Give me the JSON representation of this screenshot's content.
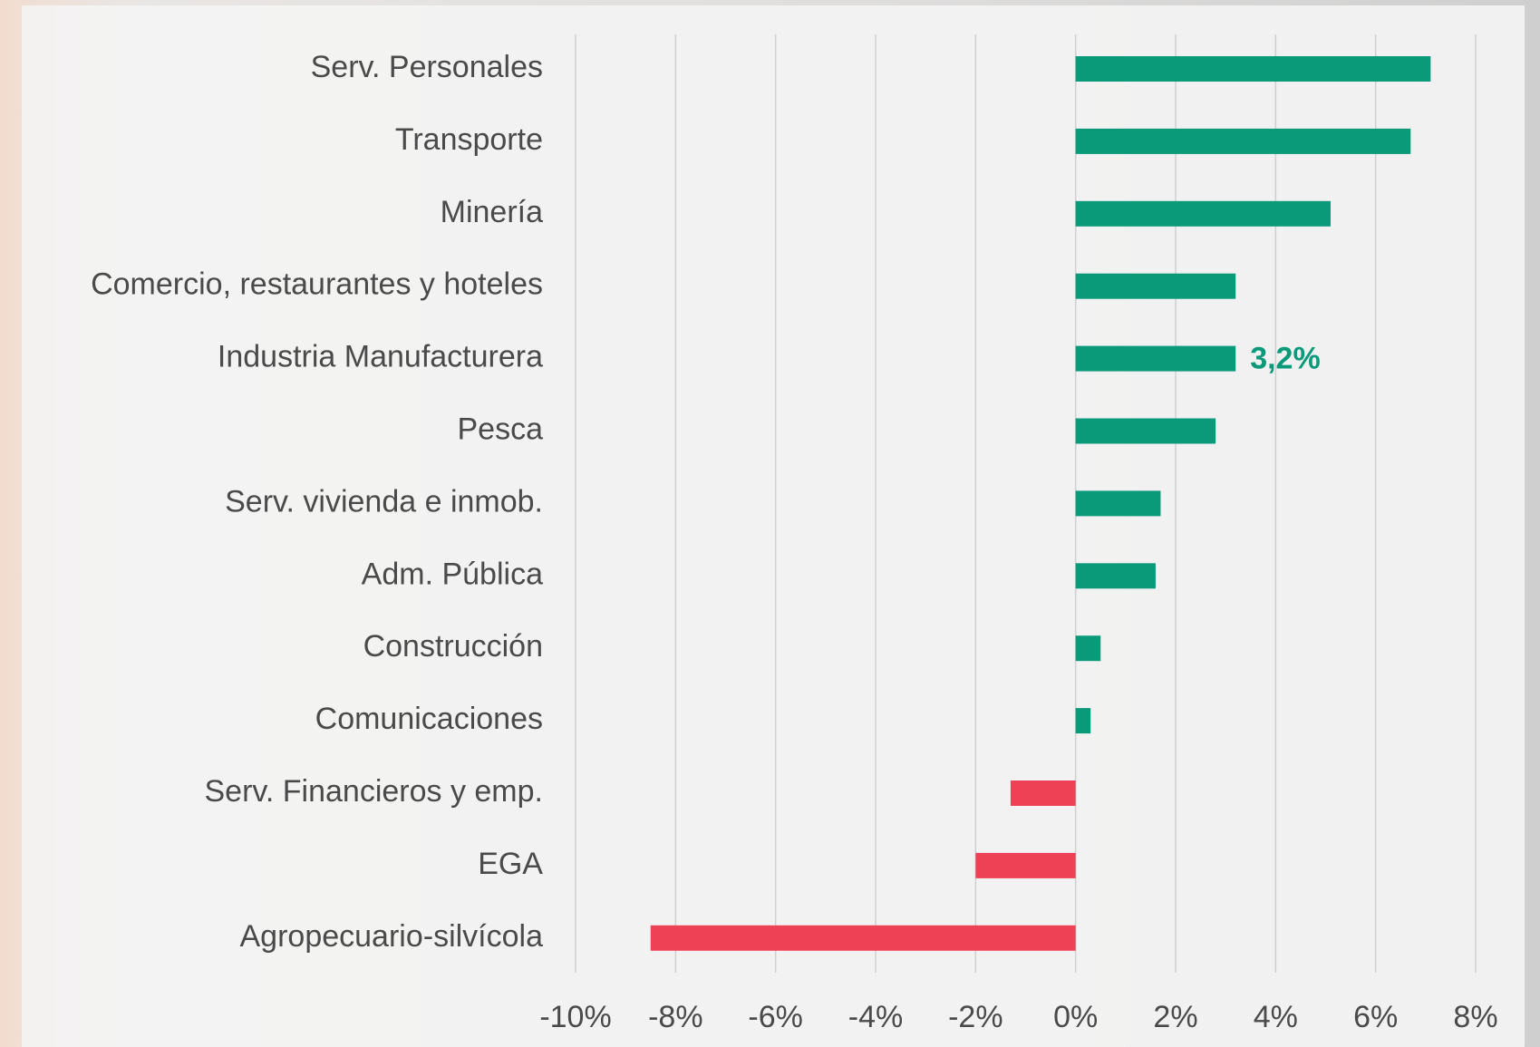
{
  "chart_data": {
    "type": "bar",
    "orientation": "horizontal",
    "categories": [
      "Serv. Personales",
      "Transporte",
      "Minería",
      "Comercio, restaurantes y hoteles",
      "Industria Manufacturera",
      "Pesca",
      "Serv. vivienda e inmob.",
      "Adm. Pública",
      "Construcción",
      "Comunicaciones",
      "Serv. Financieros y emp.",
      "EGA",
      "Agropecuario-silvícola"
    ],
    "values": [
      7.1,
      6.7,
      5.1,
      3.2,
      3.2,
      2.8,
      1.7,
      1.6,
      0.5,
      0.3,
      -1.3,
      -2.0,
      -8.5
    ],
    "value_labels": [
      null,
      null,
      null,
      null,
      "3,2%",
      null,
      null,
      null,
      null,
      null,
      null,
      null,
      null
    ],
    "color": "#0a9a7a",
    "negative_color": "#ef4155",
    "xlim": [
      -10,
      8
    ],
    "xticks": [
      {
        "value": -10,
        "label": "-10%"
      },
      {
        "value": -8,
        "label": "-8%"
      },
      {
        "value": -6,
        "label": "-6%"
      },
      {
        "value": -4,
        "label": "-4%"
      },
      {
        "value": -2,
        "label": "-2%"
      },
      {
        "value": 0,
        "label": "0%"
      },
      {
        "value": 2,
        "label": "2%"
      },
      {
        "value": 4,
        "label": "4%"
      },
      {
        "value": 6,
        "label": "6%"
      },
      {
        "value": 8,
        "label": "8%"
      }
    ],
    "grid": true
  }
}
